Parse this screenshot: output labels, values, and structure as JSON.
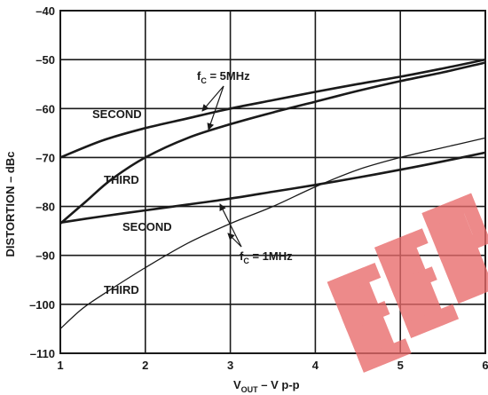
{
  "chart_data": {
    "type": "line",
    "xlabel": {
      "main": "V",
      "sub": "OUT",
      "rest": " – V p-p"
    },
    "ylabel": "DISTORTION – dBc",
    "xlim": [
      1,
      6
    ],
    "ylim": [
      -110,
      -40
    ],
    "xticks": [
      "1",
      "2",
      "3",
      "4",
      "5",
      "6"
    ],
    "yticks": [
      "–40",
      "–50",
      "–60",
      "–70",
      "–80",
      "–90",
      "–100",
      "–110"
    ],
    "grid": true,
    "series": [
      {
        "name": "SECOND, fC = 5MHz",
        "x": [
          1,
          1.5,
          2,
          2.5,
          3,
          3.5,
          4,
          4.5,
          5,
          5.5,
          6
        ],
        "y": [
          -70,
          -66.5,
          -64,
          -62,
          -60,
          -58.3,
          -56.6,
          -55,
          -53.5,
          -51.8,
          -50
        ],
        "width": 2.6
      },
      {
        "name": "THIRD, fC = 5MHz",
        "x": [
          1,
          1.3,
          1.6,
          2,
          2.5,
          3,
          3.5,
          4,
          4.5,
          5,
          5.5,
          6
        ],
        "y": [
          -83.5,
          -79,
          -74.5,
          -70,
          -66,
          -63.2,
          -60.8,
          -58.6,
          -56.4,
          -54.4,
          -52.6,
          -50.6
        ],
        "width": 2.6
      },
      {
        "name": "SECOND, fC = 1MHz",
        "x": [
          1,
          1.5,
          2,
          2.5,
          3,
          3.5,
          4,
          4.5,
          5,
          5.5,
          6
        ],
        "y": [
          -83.3,
          -82,
          -80.8,
          -79.6,
          -78.4,
          -77,
          -75.6,
          -74.1,
          -72.5,
          -70.8,
          -69
        ],
        "width": 2.6
      },
      {
        "name": "THIRD, fC = 1MHz",
        "x": [
          1,
          1.25,
          1.5,
          2,
          2.5,
          3,
          3.5,
          4,
          4.5,
          5,
          5.5,
          6
        ],
        "y": [
          -105,
          -101,
          -98,
          -92.5,
          -87.5,
          -83.5,
          -80,
          -76,
          -72.5,
          -70,
          -68,
          -66
        ],
        "width": 1.3
      }
    ],
    "annotations": {
      "second_high": "SECOND",
      "third_high": "THIRD",
      "second_low": "SECOND",
      "third_low": "THIRD",
      "fc_high": {
        "main": "f",
        "sub": "C",
        "rest": " = 5MHz"
      },
      "fc_low": {
        "main": "f",
        "sub": "C",
        "rest": " = 1MHz"
      }
    }
  }
}
